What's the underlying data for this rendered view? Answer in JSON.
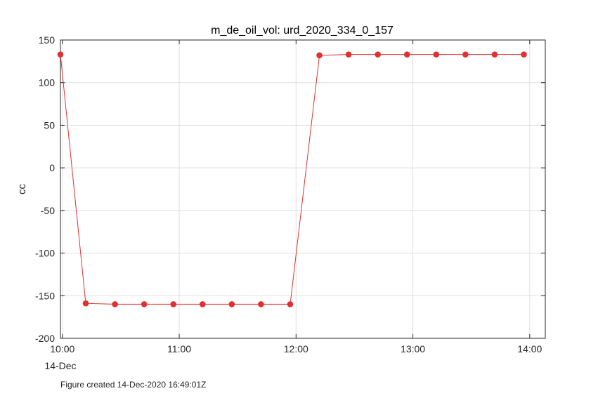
{
  "chart_data": {
    "type": "line",
    "title": "m_de_oil_vol: urd_2020_334_0_157",
    "ylabel": "cc",
    "xlabel": "",
    "x_tick_labels": [
      "10:00",
      "11:00",
      "12:00",
      "13:00",
      "14:00"
    ],
    "x_tick_values": [
      "10:00",
      "11:00",
      "12:00",
      "13:00",
      "14:00"
    ],
    "x_date_label": "14-Dec",
    "xlim": [
      "09:59",
      "14:08"
    ],
    "ylim": [
      -200,
      150
    ],
    "y_tick_values": [
      -200,
      -150,
      -100,
      -50,
      0,
      50,
      100,
      150
    ],
    "y_tick_labels": [
      "-200",
      "-150",
      "-100",
      "-50",
      "0",
      "50",
      "100",
      "150"
    ],
    "grid": true,
    "color": "#e03131",
    "series": [
      {
        "x": [
          "09:59",
          "10:12",
          "10:27",
          "10:42",
          "10:57",
          "11:12",
          "11:27",
          "11:42",
          "11:57",
          "12:12",
          "12:27",
          "12:42",
          "12:57",
          "13:12",
          "13:27",
          "13:42",
          "13:57"
        ],
        "y": [
          133,
          -159,
          -160,
          -160,
          -160,
          -160,
          -160,
          -160,
          -160,
          132,
          133,
          133,
          133,
          133,
          133,
          133,
          133
        ]
      }
    ]
  },
  "footnote": "Figure created 14-Dec-2020 16:49:01Z"
}
